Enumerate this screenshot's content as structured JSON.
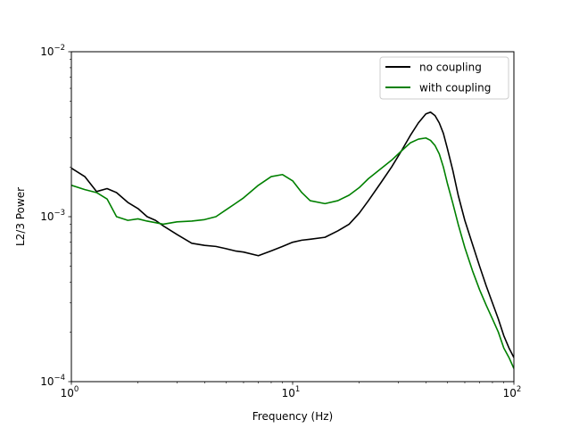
{
  "chart_data": {
    "type": "line",
    "title": "",
    "xlabel": "Frequency (Hz)",
    "ylabel": "L2/3 Power",
    "xscale": "log",
    "yscale": "log",
    "xlim": [
      1,
      100
    ],
    "ylim": [
      0.0001,
      0.01
    ],
    "x_ticks": [
      {
        "value": 1,
        "base": "10",
        "exp": "0"
      },
      {
        "value": 10,
        "base": "10",
        "exp": "1"
      },
      {
        "value": 100,
        "base": "10",
        "exp": "2"
      }
    ],
    "y_ticks": [
      {
        "value": 0.0001,
        "base": "10",
        "exp": "−4"
      },
      {
        "value": 0.001,
        "base": "10",
        "exp": "−3"
      },
      {
        "value": 0.01,
        "base": "10",
        "exp": "−2"
      }
    ],
    "grid": false,
    "legend_position": "top-right",
    "series": [
      {
        "name": "no coupling",
        "color": "#000000",
        "x": [
          1.0,
          1.15,
          1.3,
          1.45,
          1.6,
          1.8,
          2.0,
          2.2,
          2.4,
          2.6,
          3.0,
          3.5,
          4.0,
          4.5,
          5.0,
          5.5,
          6.0,
          7.0,
          8.0,
          9.0,
          10.0,
          11.0,
          12.0,
          14.0,
          16.0,
          18.0,
          20.0,
          22.0,
          25.0,
          28.0,
          31.0,
          34.0,
          37.0,
          40.0,
          42.0,
          44.0,
          46.0,
          48.0,
          50.0,
          53.0,
          56.0,
          60.0,
          65.0,
          70.0,
          75.0,
          80.0,
          85.0,
          90.0,
          95.0,
          100.0
        ],
        "y": [
          0.00197,
          0.00175,
          0.00142,
          0.00148,
          0.0014,
          0.00122,
          0.00112,
          0.001,
          0.00095,
          0.00088,
          0.00078,
          0.00069,
          0.00067,
          0.00066,
          0.00064,
          0.00062,
          0.00061,
          0.00058,
          0.00062,
          0.00066,
          0.0007,
          0.00072,
          0.00073,
          0.00075,
          0.00082,
          0.0009,
          0.00105,
          0.00125,
          0.0016,
          0.002,
          0.0025,
          0.0031,
          0.0037,
          0.0042,
          0.0043,
          0.0041,
          0.0037,
          0.0032,
          0.0026,
          0.0019,
          0.00135,
          0.00095,
          0.00068,
          0.0005,
          0.00038,
          0.0003,
          0.00024,
          0.00019,
          0.00016,
          0.00014
        ]
      },
      {
        "name": "with coupling",
        "color": "#008000",
        "x": [
          1.0,
          1.15,
          1.3,
          1.45,
          1.6,
          1.8,
          2.0,
          2.2,
          2.4,
          2.6,
          3.0,
          3.5,
          4.0,
          4.5,
          5.0,
          5.5,
          6.0,
          7.0,
          8.0,
          9.0,
          10.0,
          11.0,
          12.0,
          14.0,
          16.0,
          18.0,
          20.0,
          22.0,
          25.0,
          28.0,
          31.0,
          34.0,
          37.0,
          40.0,
          42.0,
          44.0,
          46.0,
          48.0,
          50.0,
          53.0,
          56.0,
          60.0,
          65.0,
          70.0,
          75.0,
          80.0,
          85.0,
          90.0,
          95.0,
          100.0
        ],
        "y": [
          0.00155,
          0.00146,
          0.0014,
          0.00128,
          0.001,
          0.00095,
          0.00097,
          0.00094,
          0.00092,
          0.0009,
          0.00093,
          0.00094,
          0.00096,
          0.001,
          0.0011,
          0.0012,
          0.0013,
          0.00155,
          0.00175,
          0.0018,
          0.00165,
          0.0014,
          0.00125,
          0.0012,
          0.00125,
          0.00135,
          0.0015,
          0.0017,
          0.00195,
          0.0022,
          0.0025,
          0.0028,
          0.00295,
          0.003,
          0.0029,
          0.0027,
          0.0024,
          0.002,
          0.0016,
          0.0012,
          0.0009,
          0.00065,
          0.00047,
          0.00036,
          0.00029,
          0.00024,
          0.0002,
          0.00016,
          0.00014,
          0.00012
        ]
      }
    ]
  }
}
